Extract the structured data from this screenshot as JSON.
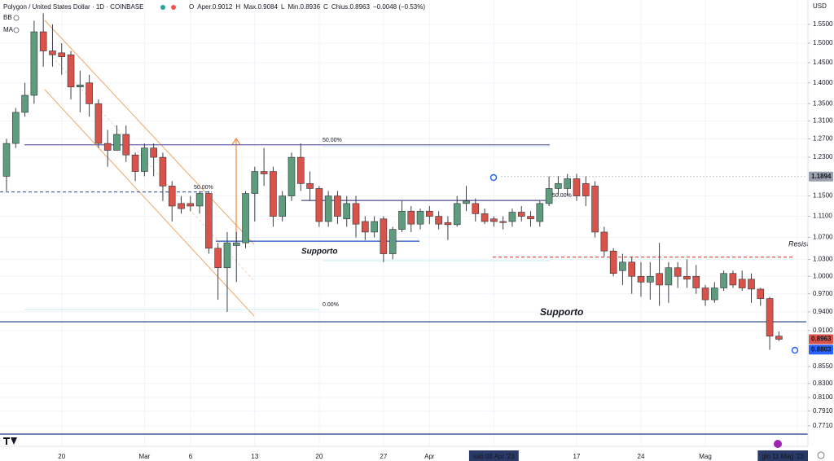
{
  "header": {
    "title": "Polygon / United States Dollar · 1D · COINBASE",
    "ohlc": [
      "O",
      "Aper.0.9012",
      "H",
      "Max.0.9084",
      "L",
      "Min.0.8936",
      "C",
      "Chius.0.8963",
      "−0.0048 (−0.53%)"
    ],
    "indicators": [
      "BB",
      "MA"
    ]
  },
  "chart_data": {
    "type": "candlestick",
    "currency": "USD",
    "log_scale": true,
    "grid": true,
    "up_color": "#5e9c7e",
    "down_color": "#d9534a",
    "categories": [
      null,
      null,
      null,
      null,
      null,
      null,
      "20",
      null,
      null,
      null,
      null,
      null,
      null,
      null,
      null,
      "Mar",
      null,
      null,
      null,
      null,
      "6",
      null,
      null,
      null,
      null,
      null,
      null,
      "13",
      null,
      null,
      null,
      null,
      null,
      null,
      "20",
      null,
      null,
      null,
      null,
      null,
      null,
      "27",
      null,
      null,
      null,
      null,
      "Apr",
      null,
      null,
      null,
      null,
      null,
      null,
      "sab 08 Apr '23",
      null,
      null,
      null,
      null,
      null,
      null,
      null,
      null,
      "17",
      null,
      null,
      null,
      null,
      null,
      null,
      "24",
      null,
      null,
      null,
      null,
      null,
      null,
      "Mag",
      null,
      null,
      null,
      null,
      null,
      null,
      null,
      null,
      null,
      "glo 11 Mag '23"
    ],
    "open": [
      1.19,
      1.26,
      1.33,
      1.37,
      1.53,
      1.48,
      1.475,
      1.47,
      1.39,
      1.4,
      1.35,
      1.26,
      1.245,
      1.28,
      1.235,
      1.2,
      1.25,
      1.23,
      1.17,
      1.135,
      1.135,
      1.13,
      1.155,
      1.05,
      1.015,
      1.055,
      1.06,
      1.155,
      1.2,
      1.2,
      1.11,
      1.15,
      1.23,
      1.175,
      1.165,
      1.1,
      1.15,
      1.105,
      1.135,
      1.1,
      1.08,
      1.105,
      1.04,
      1.085,
      1.12,
      1.095,
      1.12,
      1.11,
      1.098,
      1.094,
      1.135,
      1.135,
      1.115,
      1.105,
      1.1,
      1.1,
      1.118,
      1.11,
      1.1,
      1.135,
      1.165,
      1.165,
      1.185,
      1.175,
      1.17,
      1.08,
      1.045,
      1.01,
      1.025,
      1.0,
      0.99,
      1.005,
      0.985,
      1.015,
      1.0,
      1.0,
      0.98,
      0.96,
      0.98,
      1.005,
      0.995,
      0.995,
      0.978,
      0.962,
      0.9012,
      null,
      null
    ],
    "high": [
      1.27,
      1.34,
      1.4,
      1.56,
      1.58,
      1.55,
      1.5,
      1.48,
      1.43,
      1.42,
      1.36,
      1.29,
      1.3,
      1.3,
      1.24,
      1.26,
      1.26,
      1.24,
      1.18,
      1.15,
      1.15,
      1.16,
      1.16,
      1.06,
      1.08,
      1.08,
      1.16,
      1.21,
      1.25,
      1.21,
      1.16,
      1.24,
      1.26,
      1.2,
      1.17,
      1.16,
      1.16,
      1.15,
      1.15,
      1.11,
      1.11,
      1.11,
      1.09,
      1.14,
      1.13,
      1.125,
      1.13,
      1.12,
      1.11,
      1.15,
      1.17,
      1.145,
      1.125,
      1.11,
      1.11,
      1.125,
      1.13,
      1.12,
      1.14,
      1.19,
      1.19,
      1.195,
      1.195,
      1.19,
      1.18,
      1.09,
      1.05,
      1.04,
      1.035,
      1.025,
      1.025,
      1.06,
      1.025,
      1.025,
      1.03,
      1.02,
      0.985,
      0.99,
      1.01,
      1.01,
      1.01,
      1.005,
      0.98,
      0.965,
      0.9084,
      null,
      null
    ],
    "low": [
      1.16,
      1.25,
      1.32,
      1.35,
      1.44,
      1.44,
      1.42,
      1.36,
      1.33,
      1.32,
      1.25,
      1.21,
      1.25,
      1.22,
      1.18,
      1.19,
      1.19,
      1.14,
      1.1,
      1.115,
      1.12,
      1.115,
      1.04,
      0.96,
      0.94,
      0.99,
      1.05,
      1.1,
      1.17,
      1.09,
      1.1,
      1.14,
      1.16,
      1.14,
      1.09,
      1.09,
      1.095,
      1.09,
      1.07,
      1.065,
      1.07,
      1.025,
      1.03,
      1.08,
      1.08,
      1.085,
      1.095,
      1.085,
      1.065,
      1.09,
      1.12,
      1.1,
      1.095,
      1.09,
      1.085,
      1.09,
      1.1,
      1.09,
      1.09,
      1.13,
      1.15,
      1.15,
      1.14,
      1.13,
      1.07,
      1.035,
      1.0,
      0.985,
      0.97,
      0.965,
      0.96,
      0.95,
      0.955,
      0.98,
      0.98,
      0.97,
      0.95,
      0.955,
      0.975,
      0.98,
      0.975,
      0.955,
      0.95,
      0.88,
      0.8936,
      null,
      null
    ],
    "close": [
      1.26,
      1.33,
      1.37,
      1.53,
      1.48,
      1.47,
      1.465,
      1.39,
      1.395,
      1.35,
      1.26,
      1.245,
      1.28,
      1.235,
      1.2,
      1.25,
      1.23,
      1.17,
      1.13,
      1.125,
      1.13,
      1.155,
      1.05,
      1.015,
      1.06,
      1.06,
      1.155,
      1.2,
      1.195,
      1.11,
      1.15,
      1.23,
      1.175,
      1.165,
      1.1,
      1.15,
      1.11,
      1.135,
      1.095,
      1.08,
      1.1,
      1.04,
      1.085,
      1.12,
      1.095,
      1.12,
      1.11,
      1.095,
      1.094,
      1.135,
      1.14,
      1.115,
      1.1,
      1.1,
      1.098,
      1.118,
      1.11,
      1.105,
      1.135,
      1.165,
      1.175,
      1.185,
      1.15,
      1.15,
      1.08,
      1.045,
      1.005,
      1.025,
      1.0,
      0.99,
      1.0,
      0.985,
      1.015,
      1.0,
      0.995,
      0.98,
      0.96,
      0.98,
      1.005,
      0.985,
      0.98,
      0.978,
      0.962,
      0.9011,
      0.8963,
      null,
      null
    ],
    "ylim": [
      0.744,
      1.617
    ],
    "yticks": [
      {
        "value": 1.55,
        "label": "1.5500"
      },
      {
        "value": 1.5,
        "label": "1.5000"
      },
      {
        "value": 1.45,
        "label": "1.4500"
      },
      {
        "value": 1.4,
        "label": "1.4000"
      },
      {
        "value": 1.35,
        "label": "1.3500"
      },
      {
        "value": 1.31,
        "label": "1.3100"
      },
      {
        "value": 1.27,
        "label": "1.2700"
      },
      {
        "value": 1.23,
        "label": "1.2300"
      },
      {
        "value": 1.15,
        "label": "1.1500"
      },
      {
        "value": 1.11,
        "label": "1.1100"
      },
      {
        "value": 1.07,
        "label": "1.0700"
      },
      {
        "value": 1.03,
        "label": "1.0300"
      },
      {
        "value": 1.0,
        "label": "1.0000"
      },
      {
        "value": 0.97,
        "label": "0.9700"
      },
      {
        "value": 0.94,
        "label": "0.9400"
      },
      {
        "value": 0.91,
        "label": "0.9100"
      },
      {
        "value": 0.855,
        "label": "0.8550"
      },
      {
        "value": 0.83,
        "label": "0.8300"
      },
      {
        "value": 0.81,
        "label": "0.8100"
      },
      {
        "value": 0.791,
        "label": "0.7910"
      },
      {
        "value": 0.771,
        "label": "0.7710"
      }
    ],
    "price_labels": [
      {
        "value": 1.1894,
        "color": "#9aa0ad"
      },
      {
        "value": 0.8963,
        "color": "#d9534a"
      },
      {
        "value": 0.8803,
        "color": "#2962ff"
      }
    ],
    "lines": [
      {
        "value": 1.158,
        "color": "#3f5fa8",
        "dash": true
      },
      {
        "value": 1.257,
        "color": "#6c6aa8",
        "dash": false
      },
      {
        "value": 1.141,
        "color": "#4b4b8f",
        "dash": false
      },
      {
        "value": 1.063,
        "color": "#2250c0",
        "dash": false
      },
      {
        "value": 1.034,
        "color": "#e0574a",
        "dash": true
      },
      {
        "value": 0.924,
        "color": "#1f3580",
        "dash": false
      },
      {
        "value": 0.76,
        "color": "#1f3580",
        "dash": false
      }
    ],
    "annotations": [
      "Supporto",
      "Supporto",
      "Resist",
      "50.00%",
      "50.00%",
      "50.00%",
      "0.00%"
    ]
  }
}
